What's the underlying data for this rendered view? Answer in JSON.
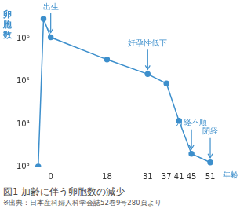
{
  "chart_data": {
    "type": "line",
    "title": "図1 加齢に伴う卵胞数の減少",
    "source": "※出典：日本産科婦人科学会誌52巻9号280頁より",
    "x_label": "年齢",
    "y_label": "卵胞数",
    "x": [
      -4,
      -2.3,
      0,
      18,
      31,
      37,
      41,
      45,
      51
    ],
    "values": [
      1000,
      3000000,
      1100000,
      330000,
      150000,
      90000,
      12000,
      2000,
      1250
    ],
    "color": "#3d8fcc",
    "marker": "circle",
    "log": "y",
    "grid": false,
    "xlim": [
      -5,
      53
    ],
    "xticks": [
      0,
      18,
      31,
      37,
      41,
      45,
      51
    ],
    "ylim": [
      1000,
      5000000
    ],
    "yticks": [
      {
        "value": 1000,
        "label": "10³"
      },
      {
        "value": 10000,
        "label": "10⁴"
      },
      {
        "value": 100000,
        "label": "10⁵"
      },
      {
        "value": 1000000,
        "label": "10⁶"
      }
    ],
    "annotations": [
      {
        "text": "出生",
        "x": 0
      },
      {
        "text": "妊孕性低下",
        "x": 31
      },
      {
        "text": "月経不順",
        "x": 45
      },
      {
        "text": "閉経",
        "x": 51
      }
    ]
  }
}
